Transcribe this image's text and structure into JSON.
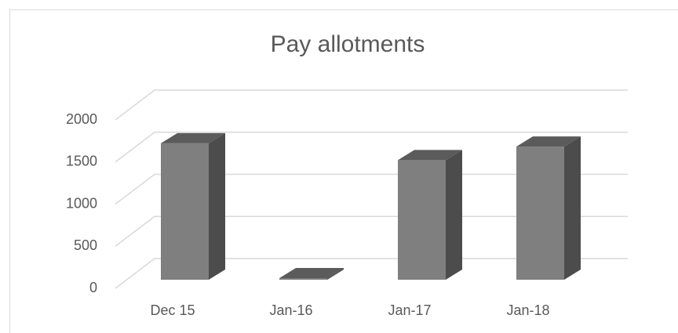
{
  "chart_data": {
    "type": "bar3d",
    "title": "Pay allotments",
    "categories": [
      "Dec 15",
      "Jan-16",
      "Jan-17",
      "Jan-18"
    ],
    "values": [
      1620,
      0,
      1420,
      1580
    ],
    "color": "#7f7f7f",
    "ylim": [
      0,
      2000
    ],
    "yticks": [
      0,
      500,
      1000,
      1500,
      2000
    ],
    "grid": true
  }
}
